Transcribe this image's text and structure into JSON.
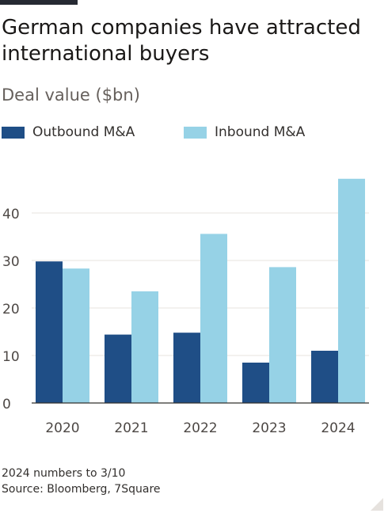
{
  "title": "German companies have attracted international buyers",
  "subtitle": "Deal value ($bn)",
  "colors": {
    "outbound": "#1f4e86",
    "inbound": "#96d2e6",
    "grid": "#e7e3df",
    "axis": "#33302e"
  },
  "footer": {
    "note": "2024 numbers to 3/10",
    "source": "Source: Bloomberg, 7Square"
  },
  "chart_data": {
    "type": "bar",
    "title": "German companies have attracted international buyers",
    "subtitle": "Deal value ($bn)",
    "categories": [
      "2020",
      "2021",
      "2022",
      "2023",
      "2024"
    ],
    "series": [
      {
        "name": "Outbound M&A",
        "values": [
          29.8,
          14.4,
          14.8,
          8.5,
          11.0
        ]
      },
      {
        "name": "Inbound M&A",
        "values": [
          28.3,
          23.5,
          35.6,
          28.6,
          47.2
        ]
      }
    ],
    "yticks": [
      0,
      10,
      20,
      30,
      40
    ],
    "ylim": [
      0,
      50
    ],
    "xlabel": "",
    "ylabel": "",
    "grid": true,
    "legend": "top-left"
  }
}
